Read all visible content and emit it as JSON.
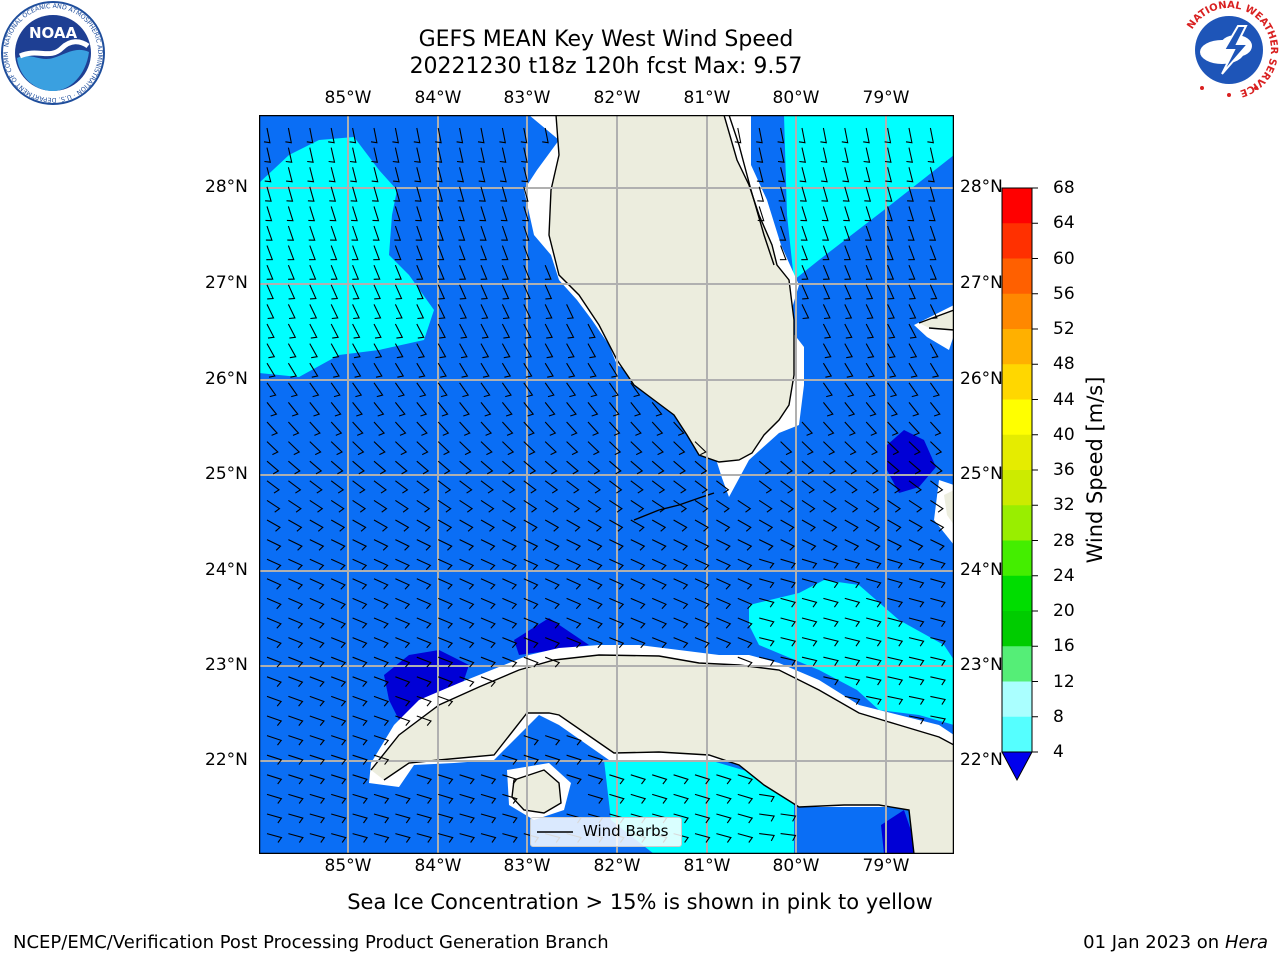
{
  "title": {
    "line1": "GEFS MEAN Key West Wind Speed",
    "line2": "20221230 t18z 120h fcst   Max: 9.57"
  },
  "map": {
    "lon_labels": [
      "85°W",
      "84°W",
      "83°W",
      "82°W",
      "81°W",
      "80°W",
      "79°W"
    ],
    "lat_labels": [
      "28°N",
      "27°N",
      "26°N",
      "25°N",
      "24°N",
      "23°N",
      "22°N"
    ],
    "legend_label": "Wind Barbs",
    "colors": {
      "land": "#ecedde",
      "ocean_4_8": "#0a6ef5",
      "band_8_12": "#00ffff",
      "band_lt4": "#0000d6",
      "gridline": "#b0b0b0",
      "coast_buffer": "#ffffff"
    }
  },
  "colorbar": {
    "label": "Wind Speed [m/s]",
    "ticks": [
      "68",
      "64",
      "60",
      "56",
      "52",
      "48",
      "44",
      "40",
      "36",
      "32",
      "28",
      "24",
      "20",
      "16",
      "12",
      "8",
      "4"
    ],
    "colors": [
      "#0078ff",
      "#00ffff",
      "#55ffff",
      "#aaffff",
      "#55ee77",
      "#00cc00",
      "#00dd00",
      "#44ee00",
      "#99ee00",
      "#cceb00",
      "#e5ec00",
      "#ffff00",
      "#ffd700",
      "#ffb000",
      "#ff8800",
      "#ff6000",
      "#ff3000",
      "#ff0000"
    ],
    "extend_color": "#0000ee"
  },
  "caption": "Sea Ice Concentration > 15% is shown in pink to yellow",
  "footer": {
    "left": "NCEP/EMC/Verification Post Processing Product Generation Branch",
    "right_date": "01 Jan 2023 on ",
    "right_host": "Hera"
  },
  "logos": {
    "noaa_text": "NOAA",
    "noaa_ring_text": "NATIONAL OCEANIC AND ATMOSPHERIC ADMINISTRATION · U.S. DEPARTMENT OF COMMERCE",
    "nws_ring_text": "NATIONAL WEATHER SERVICE"
  }
}
